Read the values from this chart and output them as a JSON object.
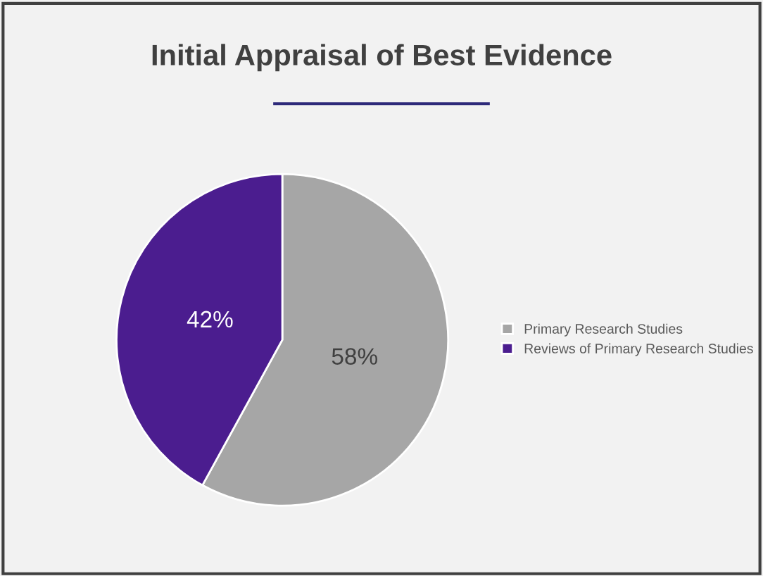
{
  "chart_data": {
    "type": "pie",
    "title": "Initial Appraisal of Best Evidence",
    "categories": [
      "Primary Research Studies",
      "Reviews of Primary Research Studies"
    ],
    "values": [
      58,
      42
    ],
    "colors": [
      "#a6a6a6",
      "#4b1d8f"
    ],
    "value_labels": [
      "58%",
      "42%"
    ],
    "legend": "right"
  }
}
